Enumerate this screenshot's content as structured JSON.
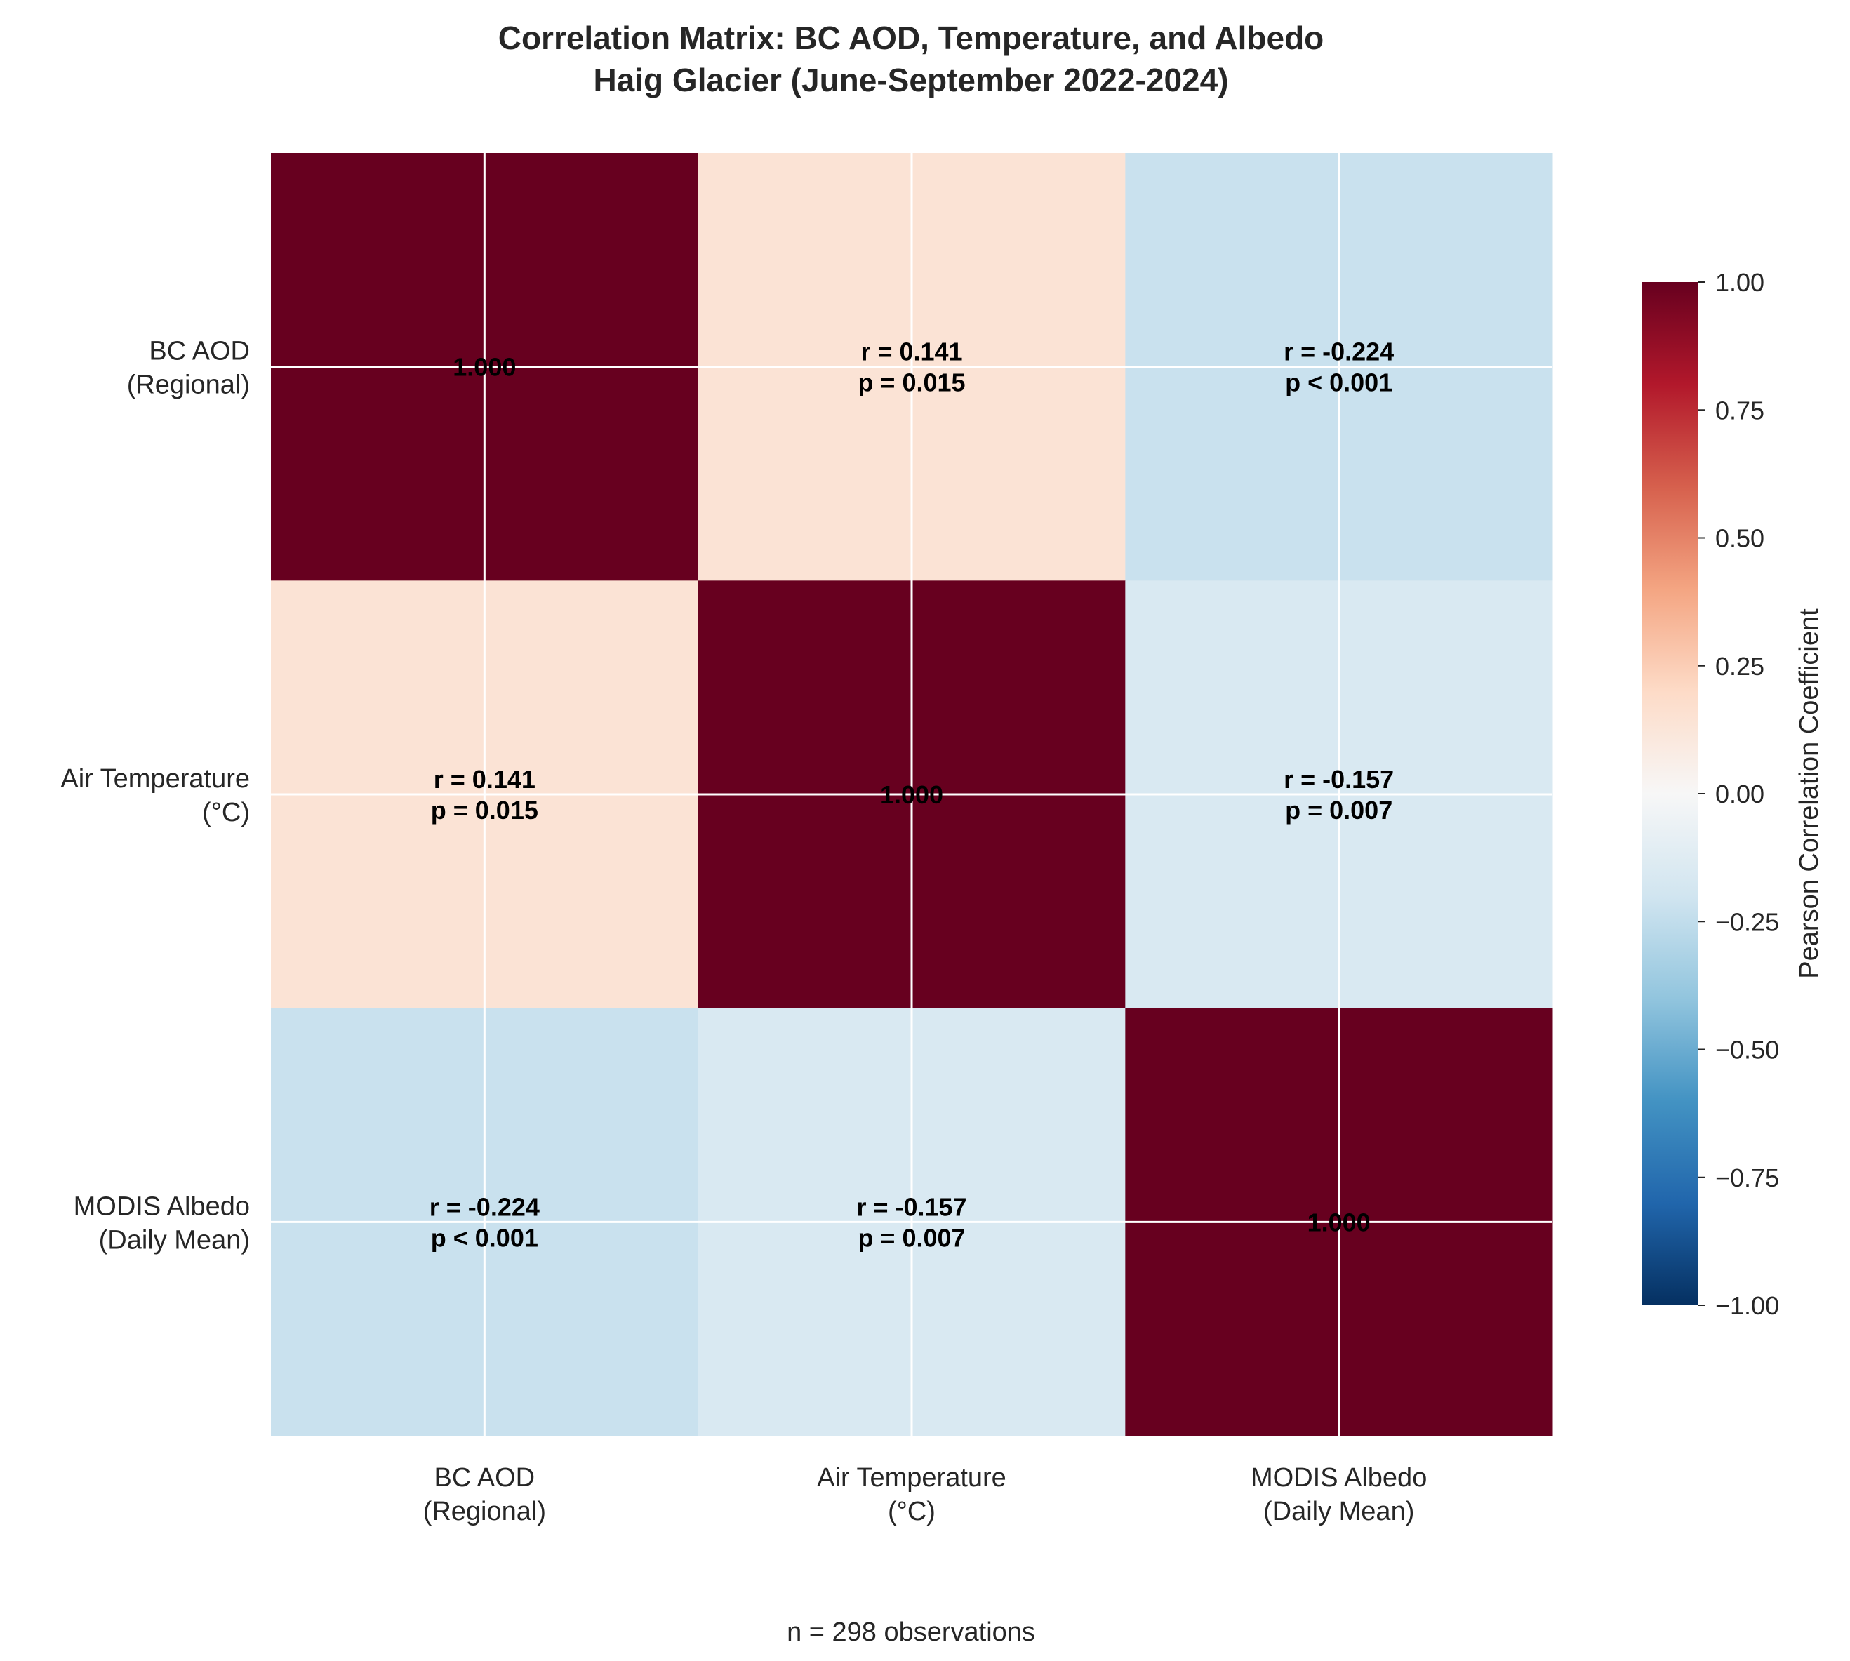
{
  "chart_data": {
    "type": "heatmap",
    "title": [
      "Correlation Matrix: BC AOD, Temperature, and Albedo",
      "Haig Glacier (June-September 2022-2024)"
    ],
    "row_labels": [
      [
        "BC AOD",
        "(Regional)"
      ],
      [
        "Air Temperature",
        "(°C)"
      ],
      [
        "MODIS Albedo",
        "(Daily Mean)"
      ]
    ],
    "col_labels": [
      [
        "BC AOD",
        "(Regional)"
      ],
      [
        "Air Temperature",
        "(°C)"
      ],
      [
        "MODIS Albedo",
        "(Daily Mean)"
      ]
    ],
    "values": [
      [
        1.0,
        0.141,
        -0.224
      ],
      [
        0.141,
        1.0,
        -0.157
      ],
      [
        -0.224,
        -0.157,
        1.0
      ]
    ],
    "cell_text": [
      [
        [
          "1.000"
        ],
        [
          "r = 0.141",
          "p = 0.015"
        ],
        [
          "r = -0.224",
          "p < 0.001"
        ]
      ],
      [
        [
          "r = 0.141",
          "p = 0.015"
        ],
        [
          "1.000"
        ],
        [
          "r = -0.157",
          "p = 0.007"
        ]
      ],
      [
        [
          "r = -0.224",
          "p < 0.001"
        ],
        [
          "r = -0.157",
          "p = 0.007"
        ],
        [
          "1.000"
        ]
      ]
    ],
    "colormap": "RdBu_r",
    "vmin": -1.0,
    "vmax": 1.0,
    "colorbar": {
      "label": "Pearson Correlation Coefficient",
      "ticks": [
        1.0,
        0.75,
        0.5,
        0.25,
        0.0,
        -0.25,
        -0.5,
        -0.75,
        -1.0
      ],
      "tick_labels": [
        "1.00",
        "0.75",
        "0.50",
        "0.25",
        "0.00",
        "−0.25",
        "−0.50",
        "−0.75",
        "−1.00"
      ]
    },
    "grid": true,
    "footnote": "n = 298 observations"
  },
  "colors": {
    "text": "#262626",
    "grid": "#ffffff",
    "cell_text": "#000000"
  }
}
